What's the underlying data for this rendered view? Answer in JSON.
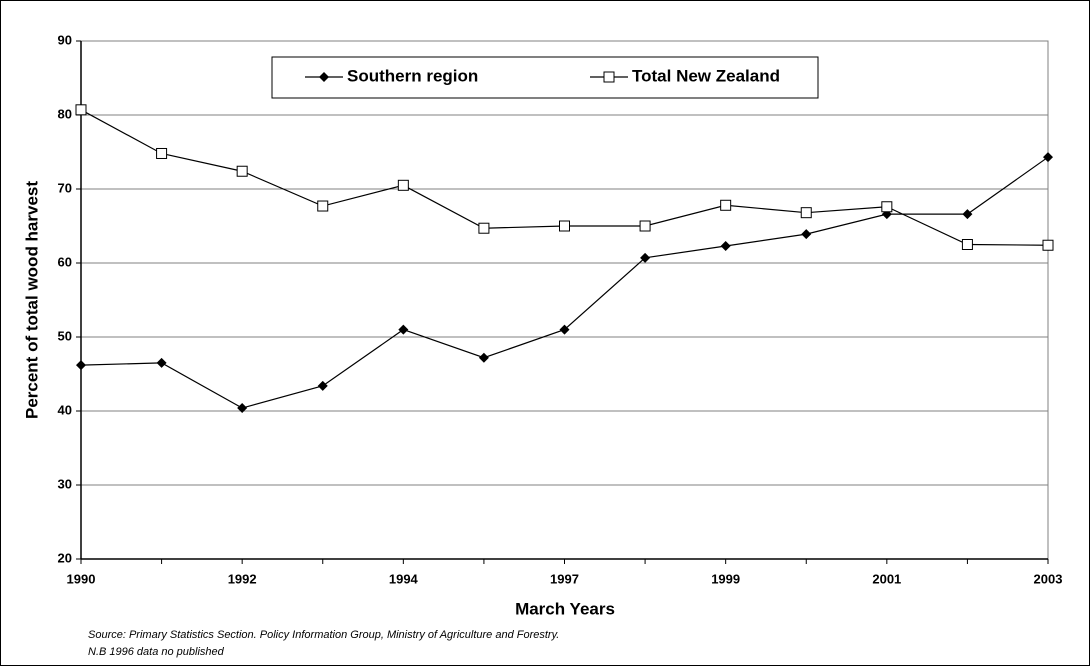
{
  "chart_data": {
    "type": "line",
    "y_label": "Percent of total wood harvest",
    "x_label": "March Years",
    "notes": [
      "Source: Primary Statistics Section. Policy Information Group, Ministry of Agriculture and Forestry.",
      "N.B 1996 data no published"
    ],
    "categories": [
      "1990",
      null,
      "1992",
      null,
      "1994",
      null,
      "1997",
      null,
      "1999",
      null,
      "2001",
      null,
      "2003"
    ],
    "series": [
      {
        "name": "Southern region",
        "color": "#000000",
        "marker": "diamond",
        "values": [
          46.2,
          46.5,
          40.4,
          43.4,
          51.0,
          47.2,
          51.0,
          60.7,
          62.3,
          63.9,
          66.6,
          66.6,
          74.3
        ]
      },
      {
        "name": "Total New Zealand",
        "color": "#000000",
        "marker": "square",
        "values": [
          80.7,
          74.8,
          72.4,
          67.7,
          70.5,
          64.7,
          65.0,
          65.0,
          67.8,
          66.8,
          67.6,
          62.5,
          62.4
        ]
      }
    ],
    "ylim": [
      20,
      90
    ],
    "yticks": [
      20,
      30,
      40,
      50,
      60,
      70,
      80,
      90
    ],
    "grid": true,
    "legend": "top"
  }
}
